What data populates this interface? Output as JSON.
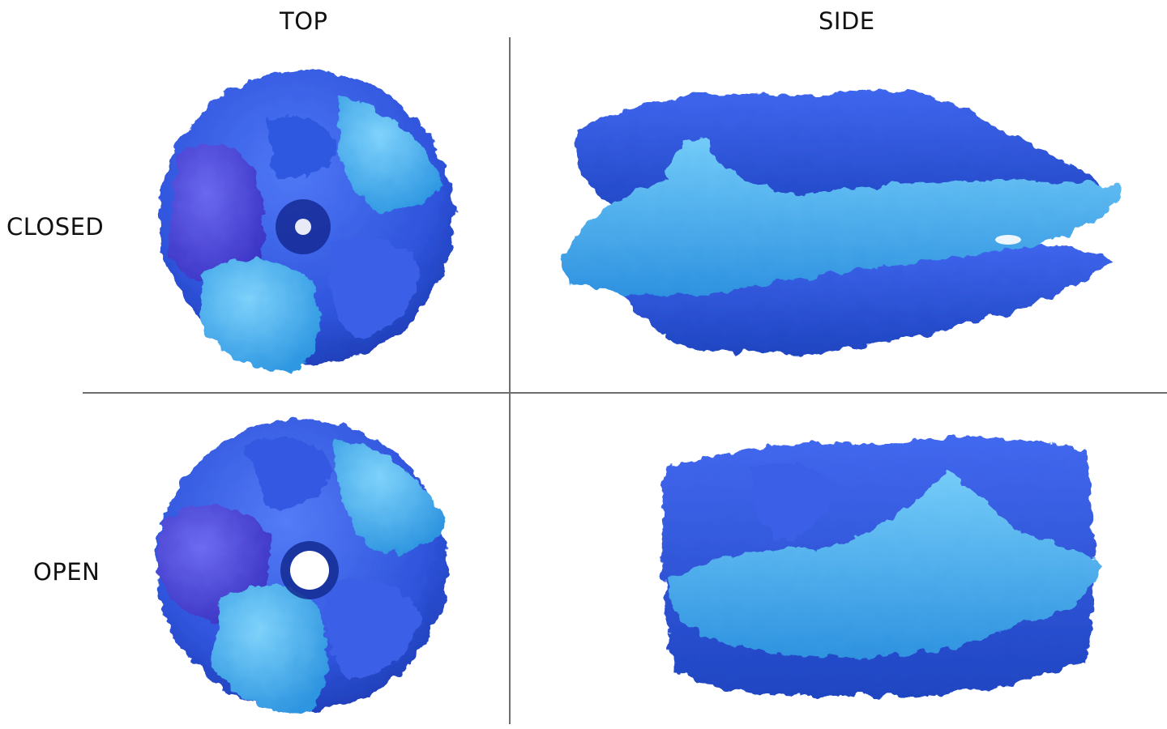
{
  "columns": {
    "top": "TOP",
    "side": "SIDE"
  },
  "rows": {
    "closed": "CLOSED",
    "open": "OPEN"
  },
  "colors": {
    "dark_blue": "#3b5ce8",
    "violet_blue": "#4e49d6",
    "mid_blue": "#2f7df0",
    "light_blue": "#3fb0ee",
    "shadow_blue": "#1c3bb3",
    "divider": "#6e6e6e",
    "background": "#ffffff"
  },
  "panels": [
    {
      "row": "closed",
      "view": "top",
      "pore": "closed"
    },
    {
      "row": "closed",
      "view": "side",
      "pore": "closed"
    },
    {
      "row": "open",
      "view": "top",
      "pore": "open"
    },
    {
      "row": "open",
      "view": "side",
      "pore": "open"
    }
  ]
}
